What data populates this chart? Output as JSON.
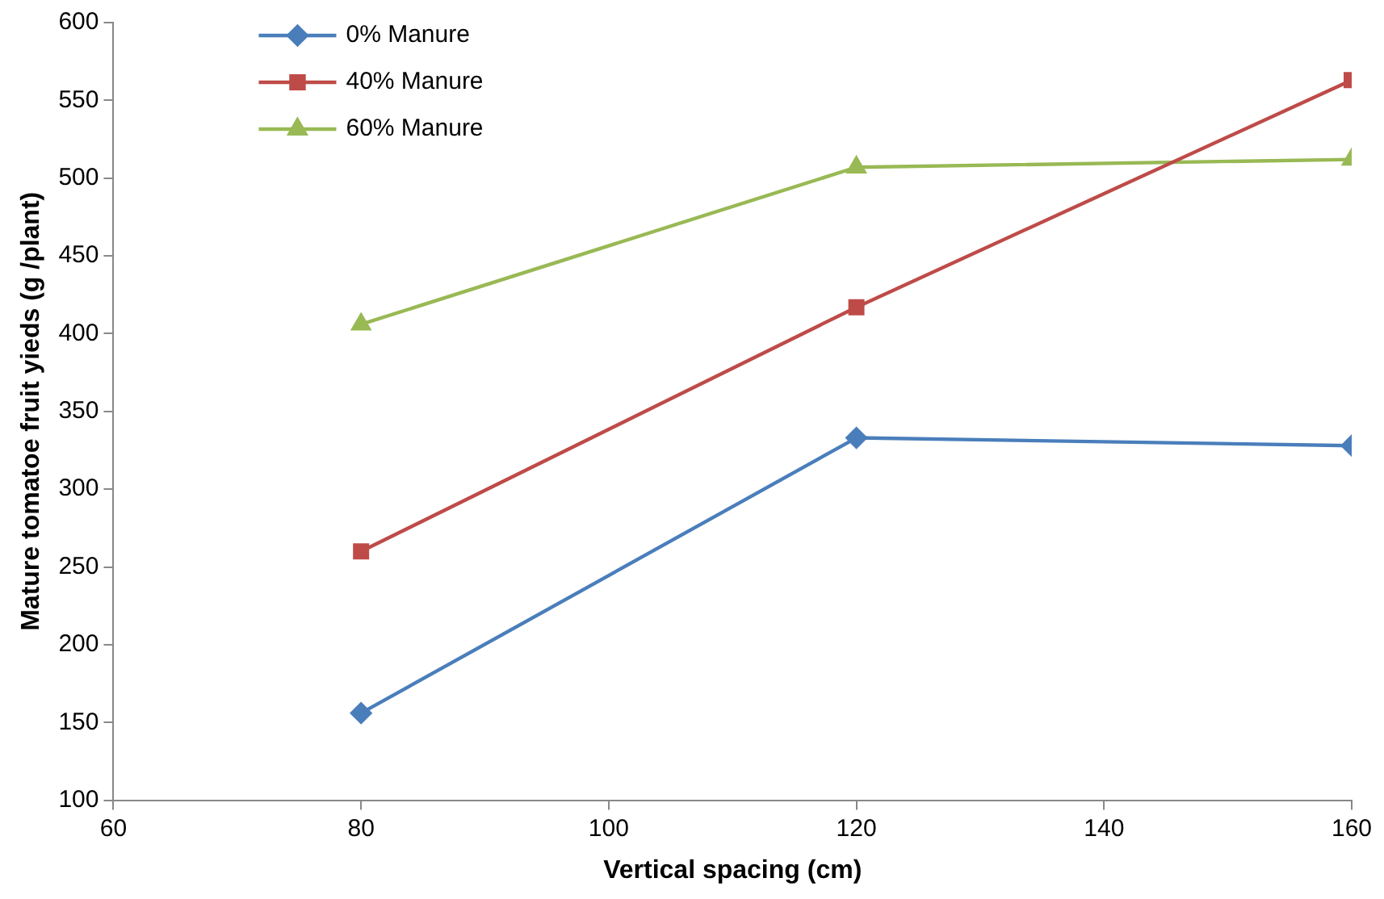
{
  "chart_data": {
    "type": "line",
    "xlabel": "Vertical spacing (cm)",
    "ylabel": "Mature tomatoe fruit yieds (g /plant)",
    "x": [
      80,
      120,
      160
    ],
    "series": [
      {
        "name": "0% Manure",
        "color": "#4a7ebb",
        "marker": "diamond",
        "values": [
          156,
          333,
          328
        ]
      },
      {
        "name": "40% Manure",
        "color": "#be4b48",
        "marker": "square",
        "values": [
          260,
          417,
          563
        ]
      },
      {
        "name": "60% Manure",
        "color": "#98b954",
        "marker": "triangle",
        "values": [
          406,
          507,
          512
        ]
      }
    ],
    "xlim": [
      60,
      160
    ],
    "xticks": [
      60,
      80,
      100,
      120,
      140,
      160
    ],
    "ylim": [
      100,
      600
    ],
    "yticks": [
      100,
      150,
      200,
      250,
      300,
      350,
      400,
      450,
      500,
      550,
      600
    ],
    "grid": false,
    "legend": "top left",
    "line_style": "solid"
  }
}
